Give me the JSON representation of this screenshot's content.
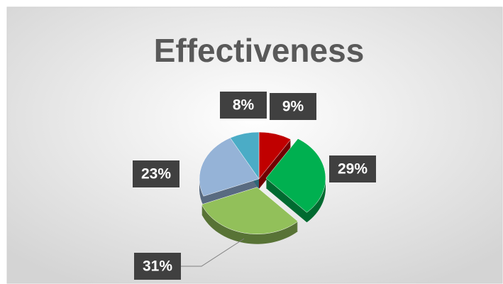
{
  "chart_data": {
    "type": "pie",
    "title": "Effectiveness",
    "values": [
      9,
      29,
      31,
      23,
      8
    ],
    "value_labels": [
      "9%",
      "29%",
      "31%",
      "23%",
      "8%"
    ],
    "colors": [
      "#c00000",
      "#00b050",
      "#92c05a",
      "#95b3d7",
      "#4bacc6"
    ]
  }
}
